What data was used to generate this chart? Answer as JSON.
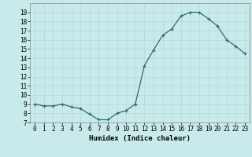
{
  "x": [
    0,
    1,
    2,
    3,
    4,
    5,
    6,
    7,
    8,
    9,
    10,
    11,
    12,
    13,
    14,
    15,
    16,
    17,
    18,
    19,
    20,
    21,
    22,
    23
  ],
  "y": [
    9.0,
    8.8,
    8.8,
    9.0,
    8.7,
    8.5,
    7.9,
    7.3,
    7.3,
    8.0,
    8.3,
    9.0,
    13.2,
    14.9,
    16.5,
    17.2,
    18.6,
    19.0,
    19.0,
    18.3,
    17.5,
    16.0,
    15.3,
    14.5
  ],
  "title": "",
  "xlabel": "Humidex (Indice chaleur)",
  "ylabel": "",
  "xlim": [
    -0.5,
    23.5
  ],
  "ylim": [
    7,
    20
  ],
  "yticks": [
    7,
    8,
    9,
    10,
    11,
    12,
    13,
    14,
    15,
    16,
    17,
    18,
    19
  ],
  "xticks": [
    0,
    1,
    2,
    3,
    4,
    5,
    6,
    7,
    8,
    9,
    10,
    11,
    12,
    13,
    14,
    15,
    16,
    17,
    18,
    19,
    20,
    21,
    22,
    23
  ],
  "line_color": "#2d6e6e",
  "marker": "+",
  "bg_color": "#c8eaea",
  "grid_color": "#b8d8d8",
  "label_fontsize": 6.5,
  "tick_fontsize": 5.5
}
